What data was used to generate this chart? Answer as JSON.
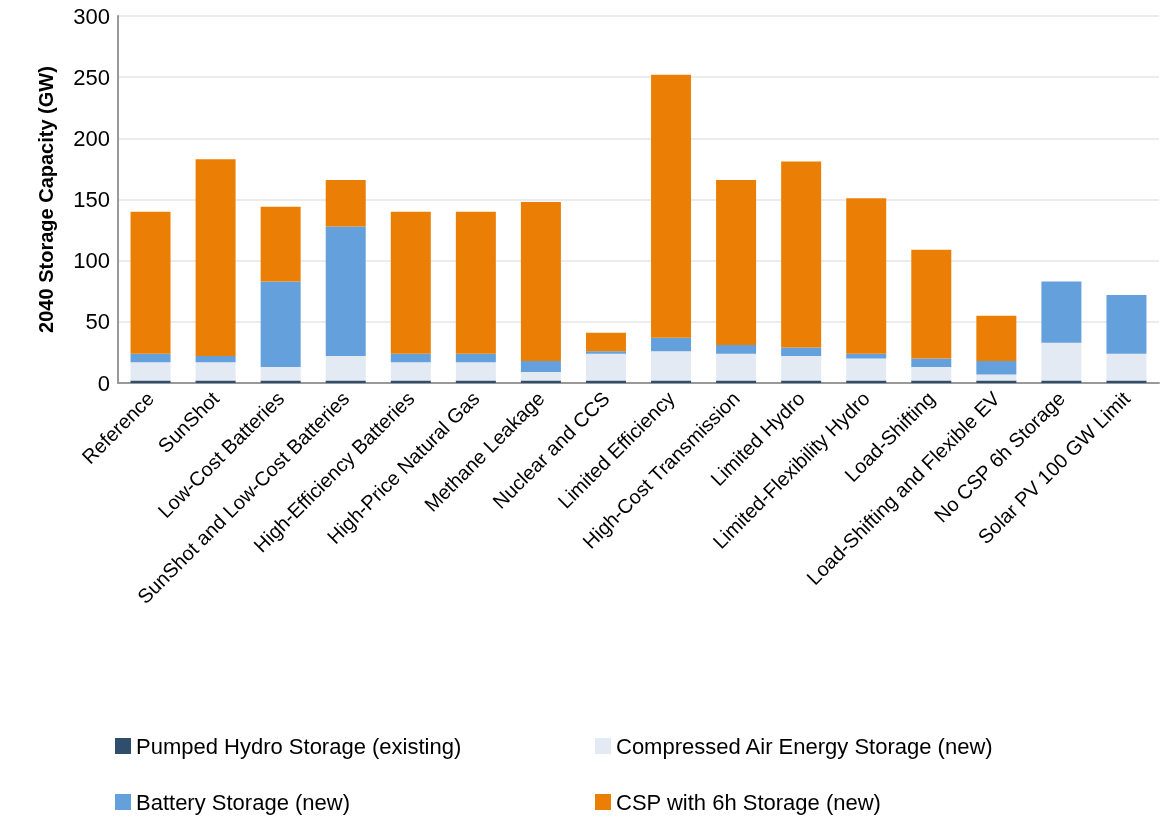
{
  "chart_data": {
    "type": "bar",
    "stacked": true,
    "ylabel": "2040 Storage Capacity (GW)",
    "categories": [
      "Reference",
      "SunShot",
      "Low-Cost Batteries",
      "SunShot and Low-Cost Batteries",
      "High-Efficiency Batteries",
      "High-Price Natural Gas",
      "Methane Leakage",
      "Nuclear and CCS",
      "Limited Efficiency",
      "High-Cost Transmission",
      "Limited Hydro",
      "Limited-Flexibility Hydro",
      "Load-Shifting",
      "Load-Shifting and Flexible EV",
      "No CSP 6h Storage",
      "Solar PV 100 GW Limit"
    ],
    "series": [
      {
        "name": "Pumped Hydro Storage (existing)",
        "color": "#2f4d6d",
        "values": [
          2,
          2,
          2,
          2,
          2,
          2,
          2,
          2,
          2,
          2,
          2,
          2,
          2,
          2,
          2,
          2
        ]
      },
      {
        "name": "Compressed Air Energy Storage (new)",
        "color": "#e3eaf3",
        "values": [
          15,
          15,
          11,
          20,
          15,
          15,
          7,
          22,
          24,
          22,
          20,
          18,
          11,
          5,
          31,
          22
        ]
      },
      {
        "name": "Battery Storage (new)",
        "color": "#64a0db",
        "values": [
          7,
          5,
          70,
          106,
          7,
          7,
          9,
          2,
          11,
          7,
          7,
          4,
          7,
          11,
          50,
          48
        ]
      },
      {
        "name": "CSP with 6h Storage (new)",
        "color": "#eb7f05",
        "values": [
          116,
          161,
          61,
          38,
          116,
          116,
          130,
          15,
          215,
          135,
          152,
          127,
          89,
          37,
          0,
          0
        ]
      }
    ],
    "ylim": [
      0,
      300
    ],
    "yticks": [
      0,
      50,
      100,
      150,
      200,
      250,
      300
    ],
    "grid": "y",
    "legend": "bottom"
  }
}
